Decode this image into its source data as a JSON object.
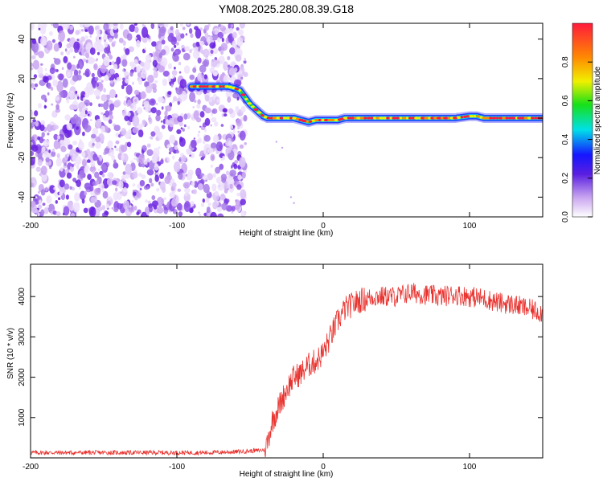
{
  "title": "YM08.2025.280.08.39.G18",
  "chart_data": [
    {
      "type": "heatmap",
      "title": "YM08.2025.280.08.39.G18",
      "xlabel": "Height of straight line (km)",
      "ylabel": "Frequency (Hz)",
      "xlim": [
        -200,
        150
      ],
      "ylim": [
        -50,
        48
      ],
      "x_ticks": [
        -200,
        -100,
        0,
        100
      ],
      "x_tick_labels": [
        "-200",
        "-100",
        "0",
        "100"
      ],
      "y_ticks": [
        -40,
        -20,
        0,
        20,
        40
      ],
      "y_tick_labels": [
        "-40",
        "-20",
        "0",
        "20",
        "40"
      ],
      "noise_region_x": [
        -200,
        -53
      ],
      "trace": {
        "x": [
          -90,
          -85,
          -80,
          -75,
          -70,
          -65,
          -60,
          -57,
          -53,
          -50,
          -47,
          -44,
          -41,
          -38,
          -35,
          -30,
          -25,
          -20,
          -15,
          -10,
          -5,
          0,
          5,
          10,
          15,
          20,
          30,
          40,
          50,
          60,
          70,
          80,
          90,
          100,
          105,
          110,
          120,
          130,
          140,
          150
        ],
        "y": [
          16,
          16,
          16,
          16,
          16,
          16,
          15,
          14,
          10,
          7,
          5,
          3,
          1,
          0,
          0,
          0,
          0,
          0,
          -1,
          -2,
          -1,
          -1,
          -1,
          -1,
          0,
          0,
          0,
          0,
          0,
          0,
          0,
          0,
          0,
          1,
          1,
          0,
          0,
          0,
          0,
          0
        ]
      },
      "colorbar": {
        "label": "Normalized spectral amplitude",
        "range": [
          0,
          1
        ],
        "ticks": [
          "0.0",
          "0.2",
          "0.4",
          "0.6",
          "0.8"
        ],
        "tick_values": [
          0,
          0.2,
          0.4,
          0.6,
          0.8
        ]
      }
    },
    {
      "type": "line",
      "xlabel": "Height of straight line (km)",
      "ylabel": "SNR (10 * v/v)",
      "xlim": [
        -200,
        150
      ],
      "ylim": [
        0,
        4800
      ],
      "x_ticks": [
        -200,
        -100,
        0,
        100
      ],
      "x_tick_labels": [
        "-200",
        "-100",
        "0",
        "100"
      ],
      "y_ticks": [
        1000,
        2000,
        3000,
        4000
      ],
      "y_tick_labels": [
        "1000",
        "2000",
        "3000",
        "4000"
      ],
      "color": "#e8322e",
      "series": [
        {
          "name": "SNR",
          "x": [
            -200,
            -180,
            -160,
            -140,
            -120,
            -100,
            -80,
            -60,
            -45,
            -40,
            -38,
            -35,
            -30,
            -25,
            -20,
            -15,
            -10,
            -5,
            0,
            5,
            10,
            15,
            20,
            25,
            30,
            35,
            40,
            50,
            60,
            70,
            80,
            90,
            100,
            110,
            120,
            130,
            140,
            150
          ],
          "y": [
            130,
            130,
            130,
            130,
            130,
            130,
            130,
            150,
            180,
            200,
            400,
            900,
            1300,
            1700,
            2000,
            2100,
            2300,
            2400,
            2600,
            3000,
            3400,
            3700,
            3800,
            3900,
            3950,
            4000,
            4000,
            4000,
            4100,
            4050,
            4000,
            4050,
            4000,
            3950,
            3850,
            3800,
            3700,
            3600
          ]
        }
      ]
    }
  ]
}
